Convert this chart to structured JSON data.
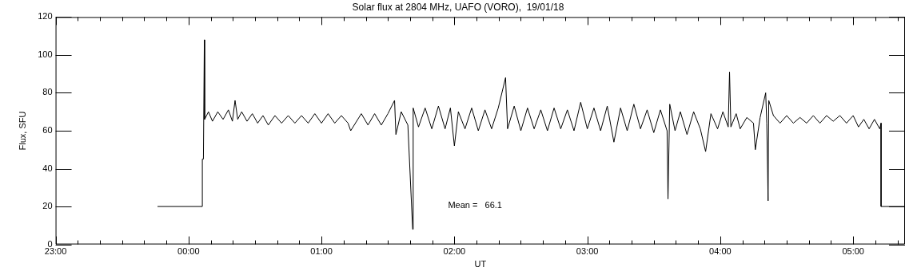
{
  "chart_data": {
    "type": "line",
    "title": "Solar flux at 2804 MHz, UAFO (VORO),  19/01/18",
    "xlabel": "UT",
    "ylabel": "Flux, SFU",
    "annotations": [
      "Mean =   66.1"
    ],
    "xlim": [
      "--01-18T23:00:00",
      "--01-19T05:23:24"
    ],
    "ylim": [
      0,
      120
    ],
    "xticks": [
      {
        "value": "--01-18T23:00:00",
        "label": "23:00"
      },
      {
        "value": "--01-18T23:10:00",
        "label": null
      },
      {
        "value": "--01-18T23:20:00",
        "label": null
      },
      {
        "value": "--01-18T23:30:00",
        "label": null
      },
      {
        "value": "--01-18T23:40:00",
        "label": null
      },
      {
        "value": "--01-18T23:50:00",
        "label": null
      },
      {
        "value": "--01-19T00:00:00",
        "label": "00:00"
      },
      {
        "value": "--01-19T00:10:00",
        "label": null
      },
      {
        "value": "--01-19T00:20:00",
        "label": null
      },
      {
        "value": "--01-19T00:30:00",
        "label": null
      },
      {
        "value": "--01-19T00:40:00",
        "label": null
      },
      {
        "value": "--01-19T00:50:00",
        "label": null
      },
      {
        "value": "--01-19T01:00:00",
        "label": "01:00"
      },
      {
        "value": "--01-19T01:10:00",
        "label": null
      },
      {
        "value": "--01-19T01:20:00",
        "label": null
      },
      {
        "value": "--01-19T01:30:00",
        "label": null
      },
      {
        "value": "--01-19T01:40:00",
        "label": null
      },
      {
        "value": "--01-19T01:50:00",
        "label": null
      },
      {
        "value": "--01-19T02:00:00",
        "label": "02:00"
      },
      {
        "value": "--01-19T02:10:00",
        "label": null
      },
      {
        "value": "--01-19T02:20:00",
        "label": null
      },
      {
        "value": "--01-19T02:30:00",
        "label": null
      },
      {
        "value": "--01-19T02:40:00",
        "label": null
      },
      {
        "value": "--01-19T02:50:00",
        "label": null
      },
      {
        "value": "--01-19T03:00:00",
        "label": "03:00"
      },
      {
        "value": "--01-19T03:10:00",
        "label": null
      },
      {
        "value": "--01-19T03:20:00",
        "label": null
      },
      {
        "value": "--01-19T03:30:00",
        "label": null
      },
      {
        "value": "--01-19T03:40:00",
        "label": null
      },
      {
        "value": "--01-19T03:50:00",
        "label": null
      },
      {
        "value": "--01-19T04:00:00",
        "label": "04:00"
      },
      {
        "value": "--01-19T04:10:00",
        "label": null
      },
      {
        "value": "--01-19T04:20:00",
        "label": null
      },
      {
        "value": "--01-19T04:30:00",
        "label": null
      },
      {
        "value": "--01-19T04:40:00",
        "label": null
      },
      {
        "value": "--01-19T04:50:00",
        "label": null
      },
      {
        "value": "--01-19T05:00:00",
        "label": "05:00"
      },
      {
        "value": "--01-19T05:10:00",
        "label": null
      },
      {
        "value": "--01-19T05:20:00",
        "label": null
      }
    ],
    "yticks": [
      0,
      20,
      40,
      60,
      80,
      100,
      120
    ],
    "series": [
      {
        "color": "#000000",
        "x": [
          "--01-18T23:46:00",
          "--01-19T00:06:14",
          "--01-19T00:06:14",
          "--01-19T00:06:43",
          "--01-19T00:07:08",
          "--01-19T00:07:16",
          "--01-19T00:09:00",
          "--01-19T00:10:48",
          "--01-19T00:13:12",
          "--01-19T00:15:36",
          "--01-19T00:18:00",
          "--01-19T00:19:48",
          "--01-19T00:21:00",
          "--01-19T00:22:12",
          "--01-19T00:24:00",
          "--01-19T00:26:24",
          "--01-19T00:28:48",
          "--01-19T00:31:12",
          "--01-19T00:33:36",
          "--01-19T00:36:00",
          "--01-19T00:39:00",
          "--01-19T00:42:00",
          "--01-19T00:45:00",
          "--01-19T00:48:00",
          "--01-19T00:51:00",
          "--01-19T00:54:00",
          "--01-19T00:57:00",
          "--01-19T01:00:00",
          "--01-19T01:03:00",
          "--01-19T01:06:00",
          "--01-19T01:09:00",
          "--01-19T01:12:00",
          "--01-19T01:13:12",
          "--01-19T01:18:00",
          "--01-19T01:21:00",
          "--01-19T01:24:00",
          "--01-19T01:27:00",
          "--01-19T01:30:00",
          "--01-19T01:33:00",
          "--01-19T01:33:36",
          "--01-19T01:36:00",
          "--01-19T01:39:00",
          "--01-19T01:41:10",
          "--01-19T01:41:24",
          "--01-19T01:43:48",
          "--01-19T01:46:48",
          "--01-19T01:49:48",
          "--01-19T01:52:48",
          "--01-19T01:55:48",
          "--01-19T01:58:12",
          "--01-19T02:00:00",
          "--01-19T02:01:48",
          "--01-19T02:04:48",
          "--01-19T02:07:48",
          "--01-19T02:10:48",
          "--01-19T02:13:48",
          "--01-19T02:16:48",
          "--01-19T02:19:48",
          "--01-19T02:23:06",
          "--01-19T02:24:00",
          "--01-19T02:27:00",
          "--01-19T02:30:00",
          "--01-19T02:33:00",
          "--01-19T02:36:00",
          "--01-19T02:39:00",
          "--01-19T02:42:00",
          "--01-19T02:45:00",
          "--01-19T02:48:00",
          "--01-19T02:51:00",
          "--01-19T02:54:00",
          "--01-19T02:57:00",
          "--01-19T03:00:00",
          "--01-19T03:03:00",
          "--01-19T03:06:00",
          "--01-19T03:09:00",
          "--01-19T03:12:00",
          "--01-19T03:15:00",
          "--01-19T03:18:00",
          "--01-19T03:21:00",
          "--01-19T03:24:00",
          "--01-19T03:27:00",
          "--01-19T03:30:00",
          "--01-19T03:33:00",
          "--01-19T03:36:00",
          "--01-19T03:36:25",
          "--01-19T03:37:12",
          "--01-19T03:39:36",
          "--01-19T03:42:00",
          "--01-19T03:45:00",
          "--01-19T03:48:00",
          "--01-19T03:51:00",
          "--01-19T03:53:24",
          "--01-19T03:55:48",
          "--01-19T03:58:48",
          "--01-19T04:01:12",
          "--01-19T04:03:36",
          "--01-19T04:04:12",
          "--01-19T04:04:48",
          "--01-19T04:07:12",
          "--01-19T04:09:00",
          "--01-19T04:12:00",
          "--01-19T04:15:00",
          "--01-19T04:15:50",
          "--01-19T04:18:00",
          "--01-19T04:20:31",
          "--01-19T04:21:00",
          "--01-19T04:21:36",
          "--01-19T04:21:54",
          "--01-19T04:24:00",
          "--01-19T04:27:00",
          "--01-19T04:30:00",
          "--01-19T04:33:00",
          "--01-19T04:36:00",
          "--01-19T04:39:00",
          "--01-19T04:42:00",
          "--01-19T04:45:00",
          "--01-19T04:48:00",
          "--01-19T04:51:00",
          "--01-19T04:54:00",
          "--01-19T04:57:00",
          "--01-19T05:00:00",
          "--01-19T05:02:24",
          "--01-19T05:04:48",
          "--01-19T05:07:12",
          "--01-19T05:09:36",
          "--01-19T05:12:00",
          "--01-19T05:12:36",
          "--01-19T05:12:36",
          "--01-19T05:23:24"
        ],
        "values": [
          20,
          20,
          45,
          45,
          108,
          66,
          70,
          65,
          70,
          66,
          71,
          65,
          76,
          66,
          70,
          65,
          69,
          64,
          68,
          63,
          68,
          64,
          68,
          64,
          68,
          64,
          69,
          64,
          69,
          64,
          68,
          64,
          60,
          69,
          63,
          69,
          63,
          69,
          76,
          58,
          70,
          63,
          8,
          72,
          62,
          72,
          61,
          73,
          61,
          72,
          52,
          70,
          61,
          72,
          60,
          71,
          61,
          72,
          88,
          61,
          73,
          60,
          72,
          61,
          71,
          60,
          72,
          61,
          71,
          60,
          75,
          61,
          72,
          60,
          73,
          54,
          72,
          60,
          74,
          61,
          71,
          59,
          71,
          60,
          24,
          74,
          60,
          70,
          58,
          70,
          61,
          49,
          69,
          61,
          70,
          62,
          91,
          62,
          69,
          61,
          67,
          64,
          50,
          67,
          80,
          64,
          23,
          76,
          68,
          64,
          68,
          64,
          67,
          64,
          68,
          64,
          68,
          65,
          68,
          64,
          68,
          62,
          66,
          61,
          66,
          61,
          64,
          20,
          20
        ]
      }
    ]
  }
}
